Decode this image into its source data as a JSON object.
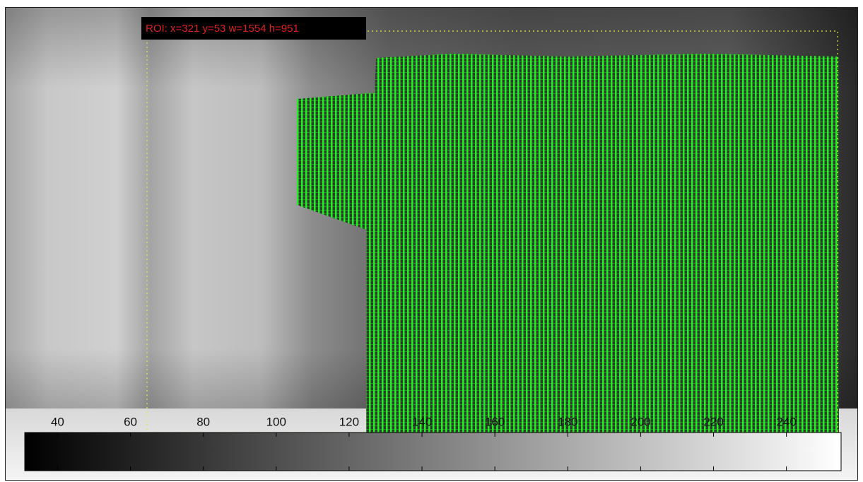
{
  "roi_label": "ROI: x=321 y=53 w=1554 h=951",
  "colorbar": {
    "colormap": "gray",
    "lim": [
      31,
      255
    ],
    "ticks": [
      40,
      60,
      80,
      100,
      120,
      140,
      160,
      180,
      200,
      220,
      240
    ]
  }
}
